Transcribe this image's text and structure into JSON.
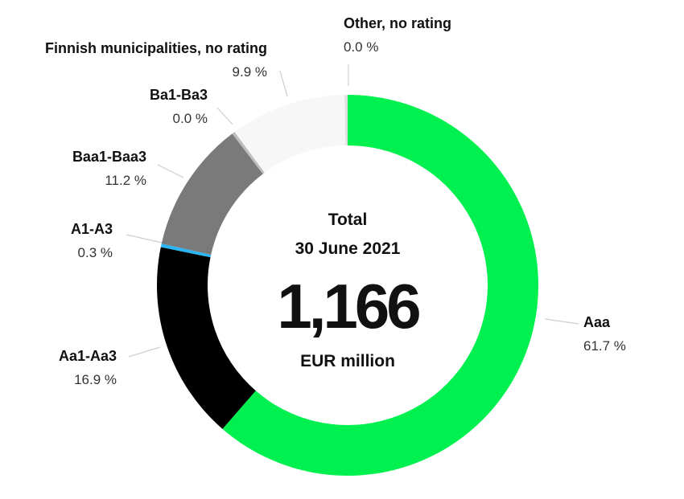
{
  "chart_data": {
    "type": "pie",
    "title": "",
    "center": {
      "line1": "Total",
      "line2": "30 June 2021",
      "value": "1,166",
      "unit": "EUR million"
    },
    "slices": [
      {
        "label": "Aaa",
        "value": 61.7,
        "value_label": "61.7 %",
        "color": "#00f050"
      },
      {
        "label": "Aa1-Aa3",
        "value": 16.9,
        "value_label": "16.9 %",
        "color": "#000000"
      },
      {
        "label": "A1-A3",
        "value": 0.3,
        "value_label": "0.3 %",
        "color": "#29b6f6"
      },
      {
        "label": "Baa1-Baa3",
        "value": 11.2,
        "value_label": "11.2 %",
        "color": "#7a7a7a"
      },
      {
        "label": "Ba1-Ba3",
        "value": 0.0,
        "value_label": "0.0 %",
        "color": "#bdbdbd"
      },
      {
        "label": "Finnish municipalities, no rating",
        "value": 9.9,
        "value_label": "9.9 %",
        "color": "#f7f7f7"
      },
      {
        "label": "Other, no rating",
        "value": 0.0,
        "value_label": "0.0 %",
        "color": "#e0e0e0"
      }
    ],
    "start": "top",
    "direction": "clockwise",
    "legend": "none"
  }
}
